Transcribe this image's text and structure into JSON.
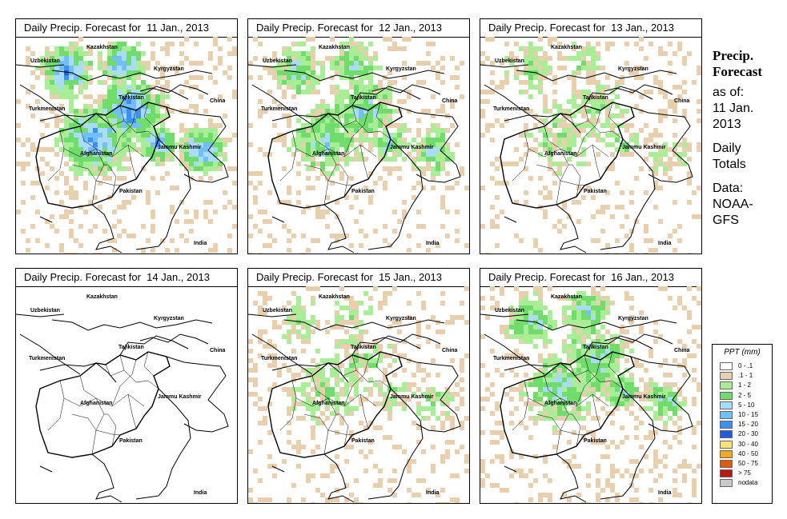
{
  "panels": [
    {
      "title": "Daily Precip. Forecast for  11 Jan., 2013",
      "intensity": 3
    },
    {
      "title": "Daily Precip. Forecast for  12 Jan., 2013",
      "intensity": 2
    },
    {
      "title": "Daily Precip. Forecast for  13 Jan., 2013",
      "intensity": 1
    },
    {
      "title": "Daily Precip. Forecast for  14 Jan., 2013",
      "intensity": 0
    },
    {
      "title": "Daily Precip. Forecast for  15 Jan., 2013",
      "intensity": 1
    },
    {
      "title": "Daily Precip. Forecast for  16 Jan., 2013",
      "intensity": 2
    }
  ],
  "map_labels": {
    "kazakhstan": "Kazakhstan",
    "uzbekistan": "Uzbekistan",
    "kyrgyzstan": "Kyrgyzstan",
    "tajikistan": "Tajikistan",
    "turkmenistan": "Turkmenistan",
    "china": "China",
    "afghanistan": "Afghanistan",
    "jammu_kashmir": "Jammu Kashmir",
    "pakistan": "Pakistan",
    "india": "India"
  },
  "sidebar": {
    "title_line1": "Precip.",
    "title_line2": "Forecast",
    "asof_line1": "as of:",
    "asof_line2": "11 Jan.",
    "asof_line3": "2013",
    "daily_line1": "Daily",
    "daily_line2": "Totals",
    "data_line1": "Data:",
    "data_line2": "NOAA-",
    "data_line3": "GFS"
  },
  "legend": {
    "title": "PPT (mm)",
    "items": [
      {
        "label": "0 - .1",
        "color": "#ffffff"
      },
      {
        "label": ".1 - 1",
        "color": "#e8d0ae"
      },
      {
        "label": "1 - 2",
        "color": "#a9ee96"
      },
      {
        "label": "2 - 5",
        "color": "#6fdc6b"
      },
      {
        "label": "5 - 10",
        "color": "#a9dcfb"
      },
      {
        "label": "10 - 15",
        "color": "#72befa"
      },
      {
        "label": "15 - 20",
        "color": "#3e8ff2"
      },
      {
        "label": "20 - 30",
        "color": "#1f5fe0"
      },
      {
        "label": "30 - 40",
        "color": "#f6e27a"
      },
      {
        "label": "40 - 50",
        "color": "#f5a623"
      },
      {
        "label": "50 - 75",
        "color": "#e05a12"
      },
      {
        "label": "> 75",
        "color": "#b81a12"
      },
      {
        "label": "nodata",
        "color": "#c8c8c8"
      }
    ]
  }
}
